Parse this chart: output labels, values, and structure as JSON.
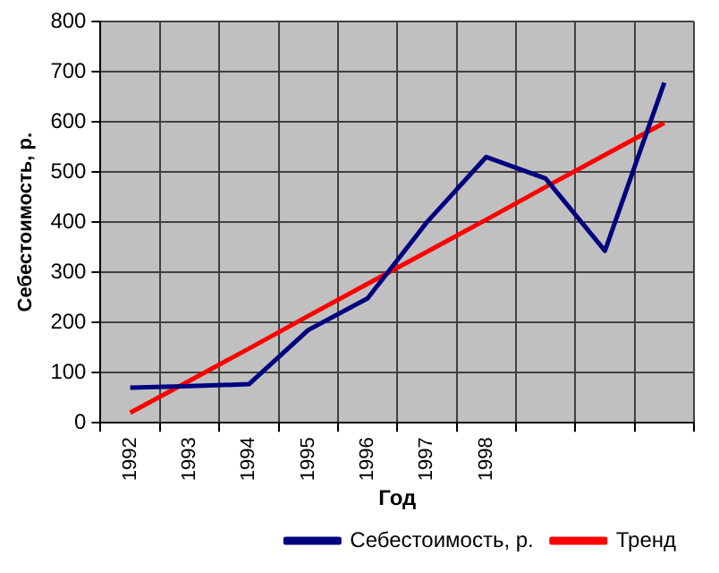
{
  "chart_data": {
    "type": "line",
    "xlabel": "Год",
    "ylabel": "Себестоимость, р.",
    "categories": [
      "1992",
      "1993",
      "1994",
      "1995",
      "1996",
      "1997",
      "1998",
      null,
      null,
      null
    ],
    "series": [
      {
        "name": "Себестоимость, р.",
        "color": "#000080",
        "values": [
          70,
          73,
          77,
          185,
          248,
          400,
          530,
          487,
          343,
          678
        ]
      },
      {
        "name": "Тренд",
        "color": "#ff0000",
        "values": [
          20,
          84,
          148,
          213,
          277,
          341,
          405,
          470,
          534,
          598
        ]
      }
    ],
    "ylim": [
      0,
      800
    ],
    "yticks": [
      0,
      100,
      200,
      300,
      400,
      500,
      600,
      700,
      800
    ],
    "grid": true,
    "legend": "bottom right",
    "marker": "none",
    "line_style": "solid"
  }
}
